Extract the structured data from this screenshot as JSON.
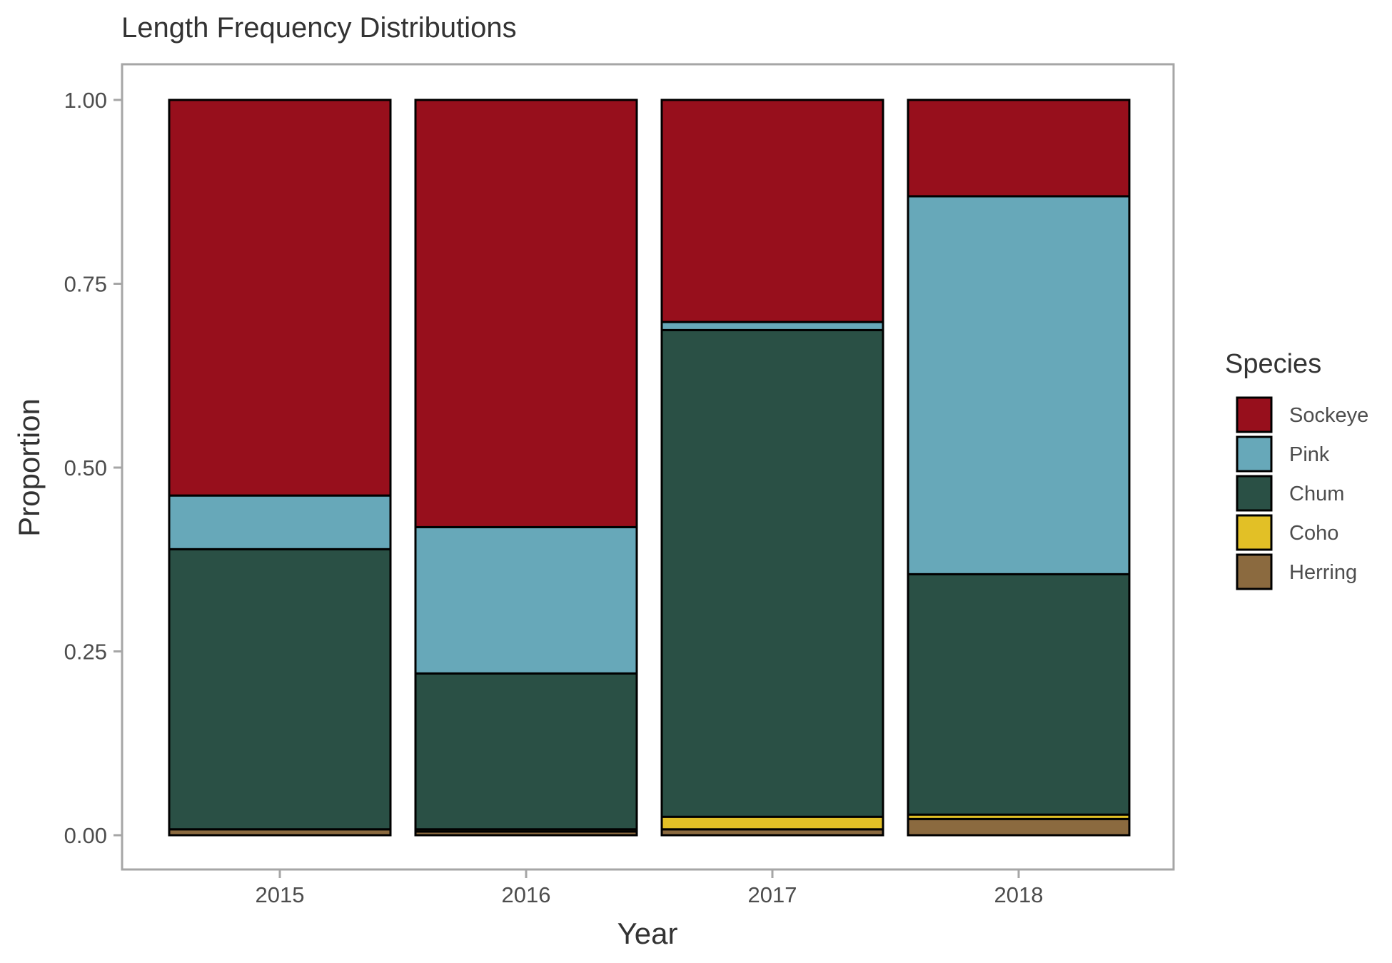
{
  "chart_data": {
    "type": "bar",
    "stacked": true,
    "title": "Length Frequency Distributions",
    "xlabel": "Year",
    "ylabel": "Proportion",
    "categories": [
      "2015",
      "2016",
      "2017",
      "2018"
    ],
    "ylim": [
      0,
      1
    ],
    "yticks": [
      "0.00",
      "0.25",
      "0.50",
      "0.75",
      "1.00"
    ],
    "legend_title": "Species",
    "legend_position": "right",
    "grid": false,
    "series": [
      {
        "name": "Herring",
        "color": "#8B6A3F",
        "values": [
          0.008,
          0.005,
          0.008,
          0.022
        ]
      },
      {
        "name": "Coho",
        "color": "#E2C026",
        "values": [
          0.0,
          0.003,
          0.017,
          0.006
        ]
      },
      {
        "name": "Chum",
        "color": "#2A5045",
        "values": [
          0.381,
          0.212,
          0.662,
          0.327
        ]
      },
      {
        "name": "Pink",
        "color": "#67A8B9",
        "values": [
          0.073,
          0.199,
          0.011,
          0.514
        ]
      },
      {
        "name": "Sockeye",
        "color": "#970F1C",
        "values": [
          0.538,
          0.581,
          0.302,
          0.131
        ]
      }
    ],
    "legend_order": [
      "Sockeye",
      "Pink",
      "Chum",
      "Coho",
      "Herring"
    ]
  }
}
